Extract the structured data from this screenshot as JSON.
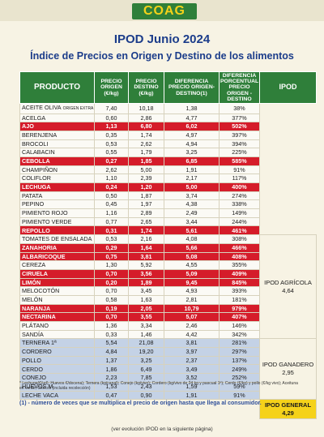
{
  "logo": "COAG",
  "title": "IPOD Junio 2024",
  "subtitle": "Índice de Precios en Origen y Destino de los alimentos",
  "columns": [
    "PRODUCTO",
    "PRECIO ORIGEN (€/kg)",
    "PRECIO DESTINO (€/kg)",
    "DIFERENCIA PRECIO ORIGEN-DESTINO(1)",
    "DIFERENCIA PORCENTUAL PRECIO ORIGEN - DESTINO",
    "IPOD"
  ],
  "rows": [
    {
      "producto": "ACEITE OLIVA",
      "nota": "ORIGEN EXTRA",
      "origen": "7,40",
      "destino": "10,18",
      "dif": "1,38",
      "pct": "38%",
      "style": "white"
    },
    {
      "producto": "ACELGA",
      "origen": "0,60",
      "destino": "2,86",
      "dif": "4,77",
      "pct": "377%",
      "style": "white"
    },
    {
      "producto": "AJO",
      "origen": "1,13",
      "destino": "6,80",
      "dif": "6,02",
      "pct": "502%",
      "style": "red"
    },
    {
      "producto": "BERENJENA",
      "origen": "0,35",
      "destino": "1,74",
      "dif": "4,97",
      "pct": "397%",
      "style": "white"
    },
    {
      "producto": "BROCOLI",
      "origen": "0,53",
      "destino": "2,62",
      "dif": "4,94",
      "pct": "394%",
      "style": "white"
    },
    {
      "producto": "CALABACIN",
      "origen": "0,55",
      "destino": "1,79",
      "dif": "3,25",
      "pct": "225%",
      "style": "white"
    },
    {
      "producto": "CEBOLLA",
      "origen": "0,27",
      "destino": "1,85",
      "dif": "6,85",
      "pct": "585%",
      "style": "red"
    },
    {
      "producto": "CHAMPIÑON",
      "origen": "2,62",
      "destino": "5,00",
      "dif": "1,91",
      "pct": "91%",
      "style": "white"
    },
    {
      "producto": "COLIFLOR",
      "origen": "1,10",
      "destino": "2,39",
      "dif": "2,17",
      "pct": "117%",
      "style": "white"
    },
    {
      "producto": "LECHUGA",
      "origen": "0,24",
      "destino": "1,20",
      "dif": "5,00",
      "pct": "400%",
      "style": "red"
    },
    {
      "producto": "PATATA",
      "origen": "0,50",
      "destino": "1,87",
      "dif": "3,74",
      "pct": "274%",
      "style": "white"
    },
    {
      "producto": "PEPINO",
      "origen": "0,45",
      "destino": "1,97",
      "dif": "4,38",
      "pct": "338%",
      "style": "white"
    },
    {
      "producto": "PIMIENTO ROJO",
      "origen": "1,16",
      "destino": "2,89",
      "dif": "2,49",
      "pct": "149%",
      "style": "white"
    },
    {
      "producto": "PIMIENTO VERDE",
      "origen": "0,77",
      "destino": "2,65",
      "dif": "3,44",
      "pct": "244%",
      "style": "white"
    },
    {
      "producto": "REPOLLO",
      "origen": "0,31",
      "destino": "1,74",
      "dif": "5,61",
      "pct": "461%",
      "style": "red"
    },
    {
      "producto": "TOMATES DE ENSALADA",
      "origen": "0,53",
      "destino": "2,16",
      "dif": "4,08",
      "pct": "308%",
      "style": "white"
    },
    {
      "producto": "ZANAHORIA",
      "origen": "0,29",
      "destino": "1,64",
      "dif": "5,66",
      "pct": "466%",
      "style": "red"
    },
    {
      "producto": "ALBARICOQUE",
      "origen": "0,75",
      "destino": "3,81",
      "dif": "5,08",
      "pct": "408%",
      "style": "red"
    },
    {
      "producto": "CEREZA",
      "origen": "1,30",
      "destino": "5,92",
      "dif": "4,55",
      "pct": "355%",
      "style": "white"
    },
    {
      "producto": "CIRUELA",
      "origen": "0,70",
      "destino": "3,56",
      "dif": "5,09",
      "pct": "409%",
      "style": "red"
    },
    {
      "producto": "LIMÓN",
      "origen": "0,20",
      "destino": "1,89",
      "dif": "9,45",
      "pct": "845%",
      "style": "red"
    },
    {
      "producto": "MELOCOTÓN",
      "origen": "0,70",
      "destino": "3,45",
      "dif": "4,93",
      "pct": "393%",
      "style": "white"
    },
    {
      "producto": "MELÓN",
      "origen": "0,58",
      "destino": "1,63",
      "dif": "2,81",
      "pct": "181%",
      "style": "white"
    },
    {
      "producto": "NARANJA",
      "origen": "0,19",
      "destino": "2,05",
      "dif": "10,79",
      "pct": "979%",
      "style": "red"
    },
    {
      "producto": "NECTARINA",
      "origen": "0,70",
      "destino": "3,55",
      "dif": "5,07",
      "pct": "407%",
      "style": "red"
    },
    {
      "producto": "PLÁTANO",
      "origen": "1,36",
      "destino": "3,34",
      "dif": "2,46",
      "pct": "146%",
      "style": "white"
    },
    {
      "producto": "SANDÍA",
      "origen": "0,33",
      "destino": "1,46",
      "dif": "4,42",
      "pct": "342%",
      "style": "white"
    },
    {
      "producto": "TERNERA 1ª",
      "origen": "5,54",
      "destino": "21,08",
      "dif": "3,81",
      "pct": "281%",
      "style": "blue"
    },
    {
      "producto": "CORDERO",
      "origen": "4,84",
      "destino": "19,20",
      "dif": "3,97",
      "pct": "297%",
      "style": "blue"
    },
    {
      "producto": "POLLO",
      "origen": "1,37",
      "destino": "3,25",
      "dif": "2,37",
      "pct": "137%",
      "style": "blue"
    },
    {
      "producto": "CERDO",
      "origen": "1,86",
      "destino": "6,49",
      "dif": "3,49",
      "pct": "249%",
      "style": "blue"
    },
    {
      "producto": "CONEJO",
      "origen": "2,23",
      "destino": "7,85",
      "dif": "3,52",
      "pct": "252%",
      "style": "blue"
    },
    {
      "producto": "HUEVOS M",
      "origen": "1,53",
      "destino": "2,43",
      "dif": "1,59",
      "pct": "59%",
      "style": "blue"
    },
    {
      "producto": "LECHE VACA",
      "origen": "0,47",
      "destino": "0,90",
      "dif": "1,91",
      "pct": "91%",
      "style": "blue"
    }
  ],
  "ipod_agricola": {
    "label": "IPOD AGRÍCOLA",
    "value": "4,64"
  },
  "ipod_ganadero": {
    "label": "IPOD GANADERO",
    "value": "2,95"
  },
  "ipod_general": {
    "label": "IPOD GENERAL",
    "value": "4,29"
  },
  "units_note": "* Lechuga(€/ud); Huevos €/docena); Ternera (kg/canal); Conejo (kg/vivo); Cordero (kg/vivo de 24 kg y pascual 1ª); Cerdo (€/kg) y pollo (€/kg vivo); Aceituna en verde; Cítricos (incluida recolección)",
  "footnote": "(1) - número de veces que se multiplica el precio de origen hasta que llega al consumidor.",
  "bottom": "(ver evolución IPOD en la siguiente página)"
}
